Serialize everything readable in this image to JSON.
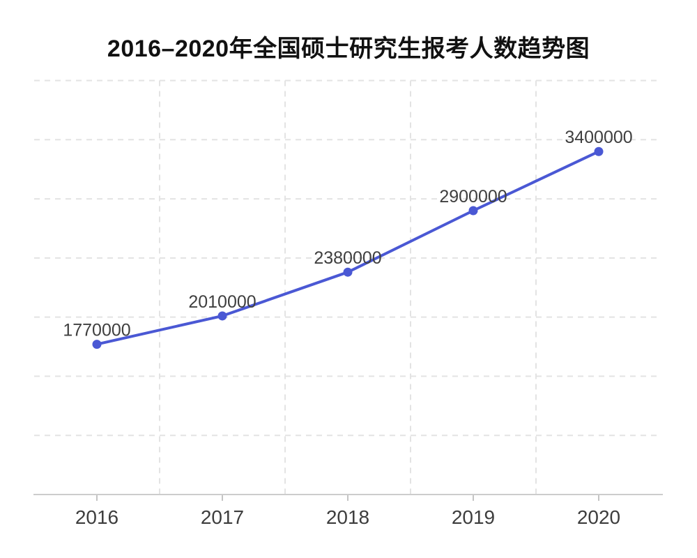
{
  "chart_data": {
    "type": "line",
    "title": "2016–2020年全国硕士研究生报考人数趋势图",
    "categories": [
      "2016",
      "2017",
      "2018",
      "2019",
      "2020"
    ],
    "values": [
      1770000,
      2010000,
      2380000,
      2900000,
      3400000
    ],
    "point_labels": [
      "1770000",
      "2010000",
      "2380000",
      "2900000",
      "3400000"
    ],
    "xlabel": "",
    "ylabel": "",
    "ylim": [
      500000,
      4000000
    ],
    "y_step": 500000,
    "grid": "dashed, light gray; horizontal lines + vertical lines at category boundaries",
    "legend": "none",
    "colors": {
      "line": "#4a58d4",
      "point": "#4a58d4",
      "grid": "#e3e3e3",
      "axis": "#cccccc",
      "tick": "#c4c4c4",
      "tick_label": "#3d3d3d",
      "point_label": "#3f3f3f",
      "title": "#111111",
      "background": "#ffffff"
    }
  }
}
